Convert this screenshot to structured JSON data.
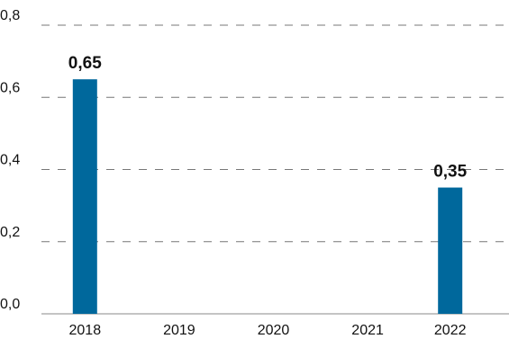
{
  "chart_data": {
    "type": "bar",
    "categories": [
      "2018",
      "2019",
      "2020",
      "2021",
      "2022"
    ],
    "values": [
      0.65,
      null,
      null,
      null,
      0.35
    ],
    "value_labels": [
      "0,65",
      null,
      null,
      null,
      "0,35"
    ],
    "color": "#00689c",
    "ylim": [
      0,
      0.8
    ],
    "yticks": [
      {
        "value": 0,
        "label": "0,0"
      },
      {
        "value": 0.2,
        "label": "0,2"
      },
      {
        "value": 0.4,
        "label": "0,4"
      },
      {
        "value": 0.6,
        "label": "0,6"
      },
      {
        "value": 0.8,
        "label": "0,8"
      }
    ],
    "grid": true
  }
}
